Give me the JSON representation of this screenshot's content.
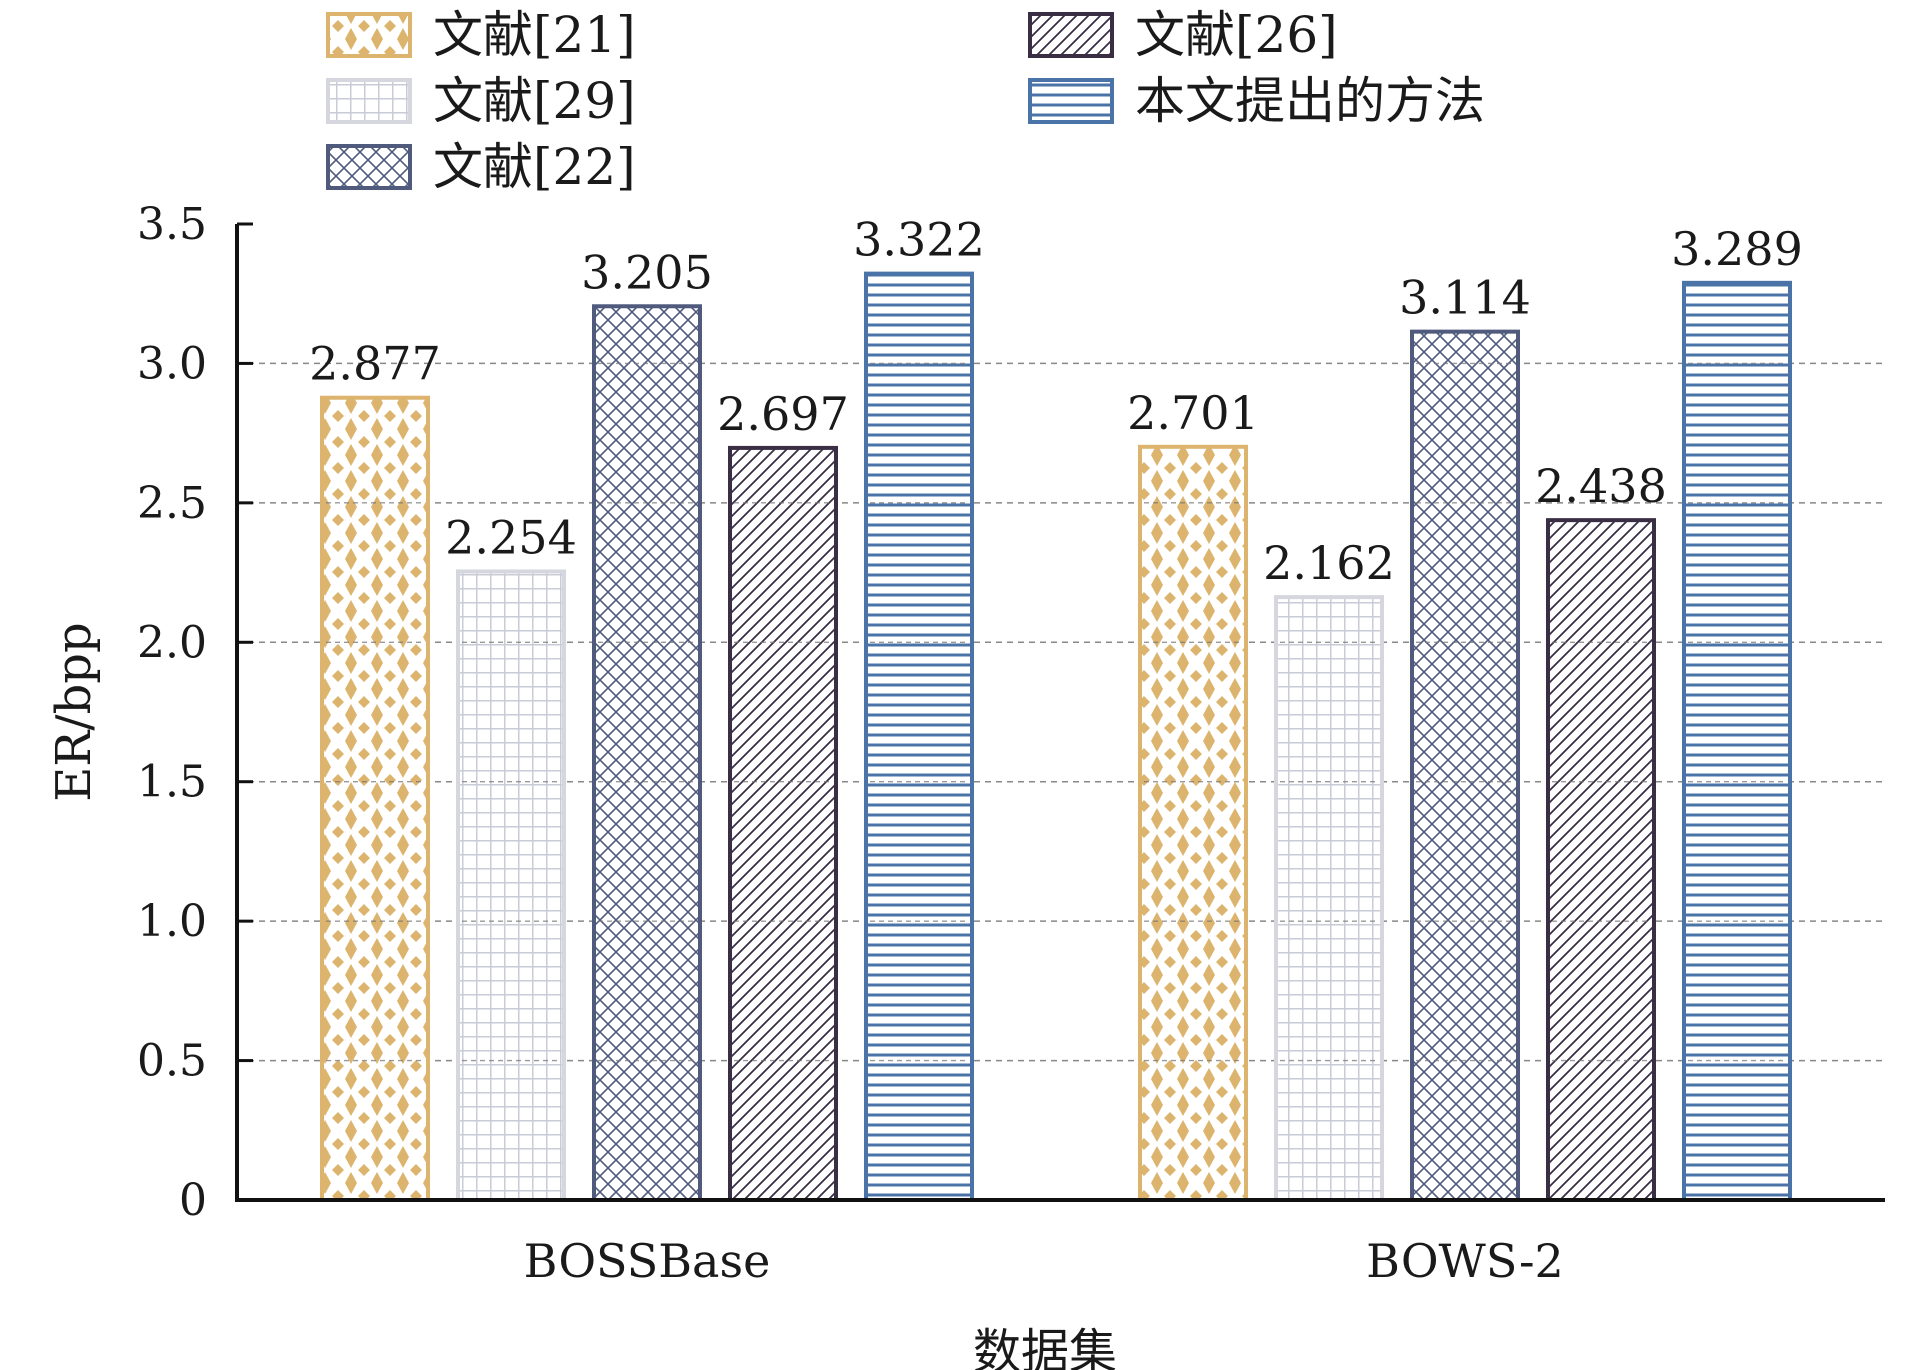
{
  "chart_data": {
    "type": "bar",
    "categories": [
      "BOSSBase",
      "BOWS-2"
    ],
    "series": [
      {
        "name": "文献[21]",
        "values": [
          2.877,
          2.701
        ],
        "color": "#DDB46E",
        "stroke": "#DDB46E",
        "pattern": "diamond-dots"
      },
      {
        "name": "文献[29]",
        "values": [
          2.254,
          2.162
        ],
        "color": "#C9CBD6",
        "stroke": "#D5D6DE",
        "pattern": "grid"
      },
      {
        "name": "文献[22]",
        "values": [
          3.205,
          3.114
        ],
        "color": "#4F5A7D",
        "stroke": "#4F5A7D",
        "pattern": "crosshatch"
      },
      {
        "name": "文献[26]",
        "values": [
          2.697,
          2.438
        ],
        "color": "#3A2E45",
        "stroke": "#3A2E45",
        "pattern": "diagonal"
      },
      {
        "name": "本文提出的方法",
        "values": [
          3.322,
          3.289
        ],
        "color": "#4A73A8",
        "stroke": "#4A73A8",
        "pattern": "horizontal"
      }
    ],
    "data_labels": [
      [
        "2.877",
        "2.701"
      ],
      [
        "2.254",
        "2.162"
      ],
      [
        "3.205",
        "3.114"
      ],
      [
        "2.697",
        "2.438"
      ],
      [
        "3.322",
        "3.289"
      ]
    ],
    "yticks": [
      "0",
      "0.5",
      "1.0",
      "1.5",
      "2.0",
      "2.5",
      "3.0",
      "3.5"
    ],
    "ytick_values": [
      0,
      0.5,
      1.0,
      1.5,
      2.0,
      2.5,
      3.0,
      3.5
    ],
    "xlabel": "数据集",
    "ylabel": "ER/bpp",
    "ylim": [
      0,
      3.5
    ],
    "grid": true,
    "legend_position": "top"
  }
}
